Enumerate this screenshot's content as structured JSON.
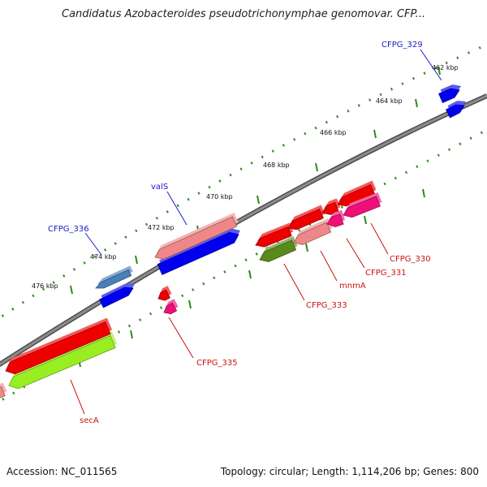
{
  "title": "Candidatus Azobacteroides pseudotrichonymphae genomovar. CFP...",
  "footer": {
    "accession": "Accession: NC_011565",
    "summary": "Topology: circular; Length: 1,114,206 bp; Genes: 800"
  },
  "colors": {
    "backbone": "#8c8c8c",
    "tick": "#2f8a1c",
    "label_plus": "#1a1acc",
    "label_minus": "#cc1111"
  },
  "ticks": [
    {
      "label": "462 kbp"
    },
    {
      "label": "464 kbp"
    },
    {
      "label": "466 kbp"
    },
    {
      "label": "468 kbp"
    },
    {
      "label": "470 kbp"
    },
    {
      "label": "472 kbp"
    },
    {
      "label": "474 kbp"
    },
    {
      "label": "476 kbp"
    }
  ],
  "genes": [
    {
      "name": "CFPG_329",
      "labeled": true,
      "strand": "+",
      "color": "#0000ee"
    },
    {
      "name": "valS",
      "labeled": true,
      "strand": "+",
      "color": "#0000ee"
    },
    {
      "name": "valS-rna",
      "labeled": false,
      "strand": "+",
      "color": "#ee8888"
    },
    {
      "name": "CFPG_336",
      "labeled": true,
      "strand": "+",
      "color": "#0000ee"
    },
    {
      "name": "CFPG_336-feature",
      "labeled": false,
      "strand": "+",
      "color": "#4a7fb8"
    },
    {
      "name": "CFPG_335",
      "labeled": true,
      "strand": "-",
      "color": "#ee1077"
    },
    {
      "name": "CFPG_335-feature",
      "labeled": false,
      "strand": "-",
      "color": "#ee0000"
    },
    {
      "name": "secA",
      "labeled": true,
      "strand": "-",
      "color": "#99ee22"
    },
    {
      "name": "secA-feature",
      "labeled": false,
      "strand": "-",
      "color": "#ee0000"
    },
    {
      "name": "CFPG_333",
      "labeled": true,
      "strand": "-",
      "color": "#5a8a1c"
    },
    {
      "name": "CFPG_333-feature",
      "labeled": false,
      "strand": "-",
      "color": "#ee0000"
    },
    {
      "name": "mnmA",
      "labeled": true,
      "strand": "-",
      "color": "#ee8888"
    },
    {
      "name": "mnmA-feature",
      "labeled": false,
      "strand": "-",
      "color": "#ee0000"
    },
    {
      "name": "CFPG_331",
      "labeled": true,
      "strand": "-",
      "color": "#ee1077"
    },
    {
      "name": "CFPG_331-feature",
      "labeled": false,
      "strand": "-",
      "color": "#ee0000"
    },
    {
      "name": "CFPG_330",
      "labeled": true,
      "strand": "-",
      "color": "#ee1077"
    },
    {
      "name": "CFPG_330-feature",
      "labeled": false,
      "strand": "-",
      "color": "#ee0000"
    },
    {
      "name": "edge-feature-left",
      "labeled": false,
      "strand": "-",
      "color": "#ee8888"
    }
  ]
}
